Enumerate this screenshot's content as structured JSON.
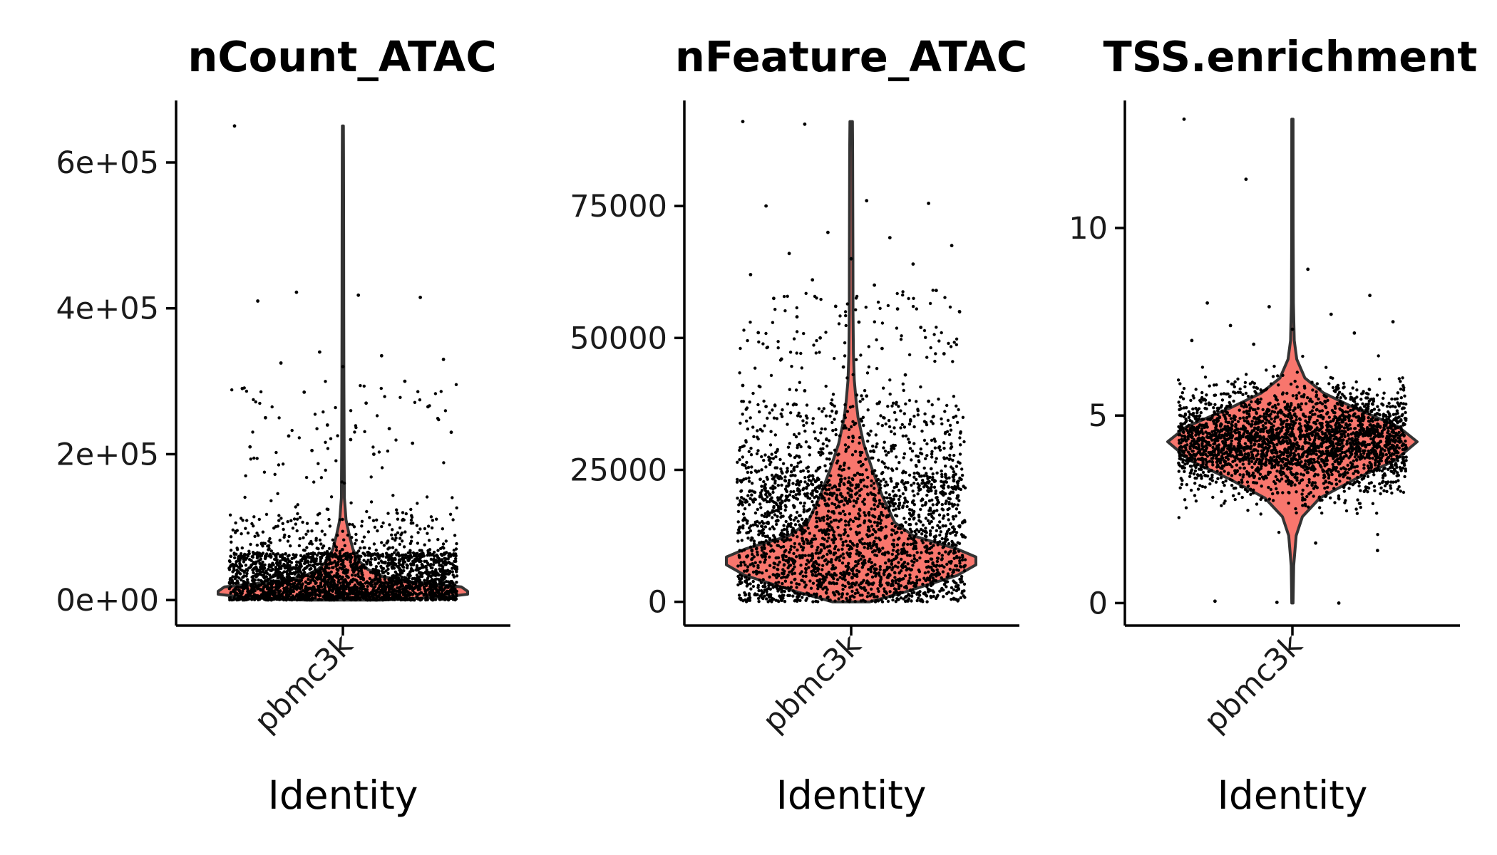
{
  "chart_data": [
    {
      "type": "violin",
      "title": "nCount_ATAC",
      "xlabel": "Identity",
      "ylabel": "",
      "categories": [
        "pbmc3k"
      ],
      "ylim": [
        -35000,
        685000
      ],
      "yticks": [
        0,
        200000,
        400000,
        600000
      ],
      "ytick_labels": [
        "0e+00",
        "2e+05",
        "4e+05",
        "6e+05"
      ],
      "fill_color": "#f8766d",
      "point_color": "#000000",
      "grid": false,
      "legend": "none",
      "n_points": 2700,
      "summary": {
        "min": 0,
        "median": 12000,
        "max": 650000
      },
      "density": [
        [
          0,
          0.3
        ],
        [
          4000,
          0.8
        ],
        [
          8000,
          1.0
        ],
        [
          12000,
          1.0
        ],
        [
          18000,
          0.95
        ],
        [
          25000,
          0.55
        ],
        [
          32000,
          0.32
        ],
        [
          42000,
          0.2
        ],
        [
          55000,
          0.12
        ],
        [
          70000,
          0.08
        ],
        [
          90000,
          0.05
        ],
        [
          110000,
          0.025
        ],
        [
          140000,
          0.012
        ],
        [
          200000,
          0.01
        ],
        [
          300000,
          0.008
        ],
        [
          400000,
          0.007
        ],
        [
          500000,
          0.006
        ],
        [
          600000,
          0.005
        ],
        [
          650000,
          0.004
        ]
      ],
      "jitter": {
        "base_min": 0,
        "base_max": 65000,
        "outlier_max": 650000
      },
      "outliers": [
        650000,
        422000,
        418000,
        415000,
        410000,
        340000,
        335000,
        330000,
        325000,
        320000,
        300000,
        290000,
        285000,
        270000,
        265000,
        250000,
        240000,
        235000,
        230000,
        225000,
        220000,
        215000,
        210000,
        205000,
        200000
      ]
    },
    {
      "type": "violin",
      "title": "nFeature_ATAC",
      "xlabel": "Identity",
      "ylabel": "",
      "categories": [
        "pbmc3k"
      ],
      "ylim": [
        -4500,
        95000
      ],
      "yticks": [
        0,
        25000,
        50000,
        75000
      ],
      "ytick_labels": [
        "0",
        "25000",
        "50000",
        "75000"
      ],
      "fill_color": "#f8766d",
      "point_color": "#000000",
      "grid": false,
      "legend": "none",
      "n_points": 2700,
      "summary": {
        "min": 0,
        "median": 8000,
        "max": 91000
      },
      "density": [
        [
          0,
          0.15
        ],
        [
          2000,
          0.45
        ],
        [
          5000,
          0.85
        ],
        [
          7000,
          1.0
        ],
        [
          8500,
          1.0
        ],
        [
          10000,
          0.85
        ],
        [
          12500,
          0.5
        ],
        [
          15000,
          0.35
        ],
        [
          20000,
          0.25
        ],
        [
          25000,
          0.17
        ],
        [
          30000,
          0.1
        ],
        [
          35000,
          0.055
        ],
        [
          38000,
          0.04
        ],
        [
          42000,
          0.025
        ],
        [
          47000,
          0.018
        ],
        [
          55000,
          0.015
        ],
        [
          65000,
          0.014
        ],
        [
          75000,
          0.013
        ],
        [
          85000,
          0.012
        ],
        [
          91000,
          0.01
        ]
      ],
      "jitter": {
        "base_min": 0,
        "base_max": 24000,
        "outlier_max": 91000
      },
      "outliers": [
        91000,
        90500,
        76000,
        75500,
        75000,
        70000,
        69000,
        67500,
        66000,
        65000,
        64000,
        62000,
        61000,
        60000,
        59000,
        57500,
        56000,
        55500,
        55000,
        54000,
        53000,
        52000,
        51000,
        50000,
        48000,
        47000,
        46000,
        44500,
        43000,
        41000,
        40000,
        39000,
        38000,
        37000
      ]
    },
    {
      "type": "violin",
      "title": "TSS.enrichment",
      "xlabel": "Identity",
      "ylabel": "",
      "categories": [
        "pbmc3k"
      ],
      "ylim": [
        -0.6,
        13.4
      ],
      "yticks": [
        0,
        5,
        10
      ],
      "ytick_labels": [
        "0",
        "5",
        "10"
      ],
      "fill_color": "#f8766d",
      "point_color": "#000000",
      "grid": false,
      "legend": "none",
      "n_points": 2700,
      "summary": {
        "min": 0,
        "median": 4.3,
        "max": 12.9
      },
      "density": [
        [
          0,
          0.005
        ],
        [
          1.0,
          0.01
        ],
        [
          1.8,
          0.03
        ],
        [
          2.3,
          0.08
        ],
        [
          2.8,
          0.22
        ],
        [
          3.3,
          0.5
        ],
        [
          3.8,
          0.82
        ],
        [
          4.3,
          1.0
        ],
        [
          4.7,
          0.85
        ],
        [
          5.2,
          0.5
        ],
        [
          5.6,
          0.25
        ],
        [
          6.0,
          0.1
        ],
        [
          6.5,
          0.035
        ],
        [
          7.0,
          0.015
        ],
        [
          8.0,
          0.008
        ],
        [
          10.0,
          0.006
        ],
        [
          12.9,
          0.005
        ]
      ],
      "jitter": {
        "base_mean": 4.3,
        "base_sd": 0.7,
        "outlier_max": 12.9
      },
      "outliers": [
        12.9,
        11.3,
        8.9,
        8.2,
        8.0,
        7.9,
        7.7,
        7.5,
        7.4,
        7.3,
        7.2,
        7.0,
        6.9,
        1.6,
        1.4,
        0.05,
        0.02,
        0.0
      ]
    }
  ]
}
